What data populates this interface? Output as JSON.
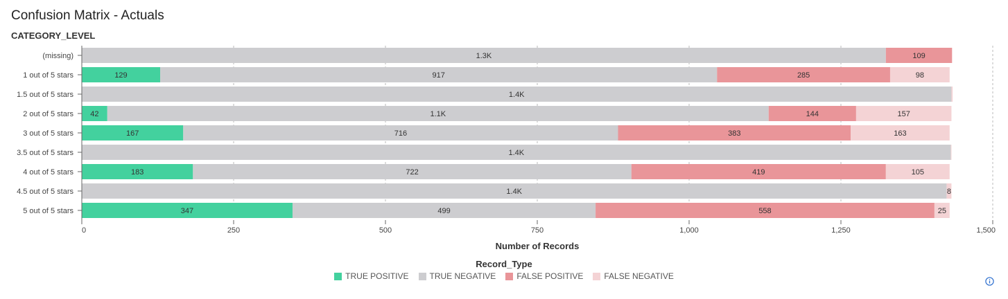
{
  "page": {
    "title": "Confusion Matrix - Actuals",
    "info_icon": "info-icon"
  },
  "chart_data": {
    "type": "bar",
    "orientation": "horizontal",
    "stacked": true,
    "y_axis_title": "CATEGORY_LEVEL",
    "xlabel": "Number of Records",
    "xlim": [
      0,
      1500
    ],
    "x_ticks": [
      0,
      250,
      500,
      750,
      1000,
      1250,
      1500
    ],
    "x_tick_labels": [
      "0",
      "250",
      "500",
      "750",
      "1,000",
      "1,250",
      "1,500"
    ],
    "grid": "vertical dashed",
    "legend_title": "Record_Type",
    "legend_position": "bottom-center",
    "categories": [
      "(missing)",
      "1 out of 5 stars",
      "1.5 out of 5 stars",
      "2 out of 5 stars",
      "3 out of 5 stars",
      "3.5 out of 5 stars",
      "4 out of 5 stars",
      "4.5 out of 5 stars",
      "5 out of 5 stars"
    ],
    "series": [
      {
        "name": "TRUE POSITIVE",
        "color": "#43d19e",
        "values": [
          0,
          129,
          0,
          42,
          167,
          0,
          183,
          0,
          347
        ],
        "labels": [
          "",
          "129",
          "",
          "42",
          "167",
          "",
          "183",
          "",
          "347"
        ]
      },
      {
        "name": "TRUE NEGATIVE",
        "color": "#cdcdd0",
        "values": [
          1324,
          917,
          1432,
          1089,
          716,
          1431,
          722,
          1424,
          499
        ],
        "labels": [
          "1.3K",
          "917",
          "1.4K",
          "1.1K",
          "716",
          "1.4K",
          "722",
          "1.4K",
          "499"
        ]
      },
      {
        "name": "FALSE POSITIVE",
        "color": "#e99599",
        "values": [
          109,
          285,
          0,
          144,
          383,
          0,
          419,
          0,
          558
        ],
        "labels": [
          "109",
          "285",
          "",
          "144",
          "383",
          "",
          "419",
          "",
          "558"
        ]
      },
      {
        "name": "FALSE NEGATIVE",
        "color": "#f4d3d5",
        "values": [
          0,
          98,
          2,
          157,
          163,
          1,
          105,
          8,
          25
        ],
        "labels": [
          "",
          "98",
          "",
          "157",
          "163",
          "",
          "105",
          "8",
          "25"
        ]
      }
    ]
  }
}
